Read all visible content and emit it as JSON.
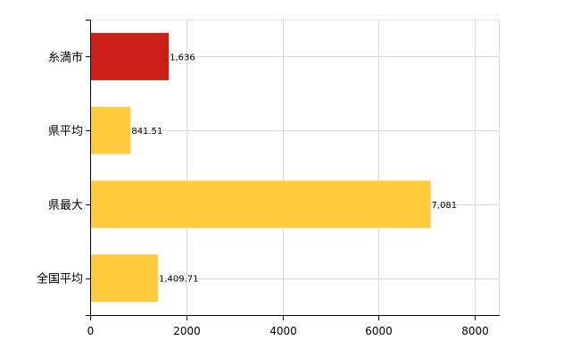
{
  "chart_data": {
    "type": "bar",
    "orientation": "horizontal",
    "categories": [
      "糸満市",
      "県平均",
      "県最大",
      "全国平均"
    ],
    "values": [
      1636,
      841.51,
      7081,
      1409.71
    ],
    "value_labels": [
      "1,636",
      "841.51",
      "7,081",
      "1,409.71"
    ],
    "colors": [
      "#cc1f17",
      "#fecb3e",
      "#fecb3e",
      "#fecb3e"
    ],
    "xlim": [
      0,
      8500
    ],
    "x_ticks": [
      0,
      2000,
      4000,
      6000,
      8000
    ],
    "grid": true,
    "title": "",
    "xlabel": "",
    "ylabel": ""
  }
}
